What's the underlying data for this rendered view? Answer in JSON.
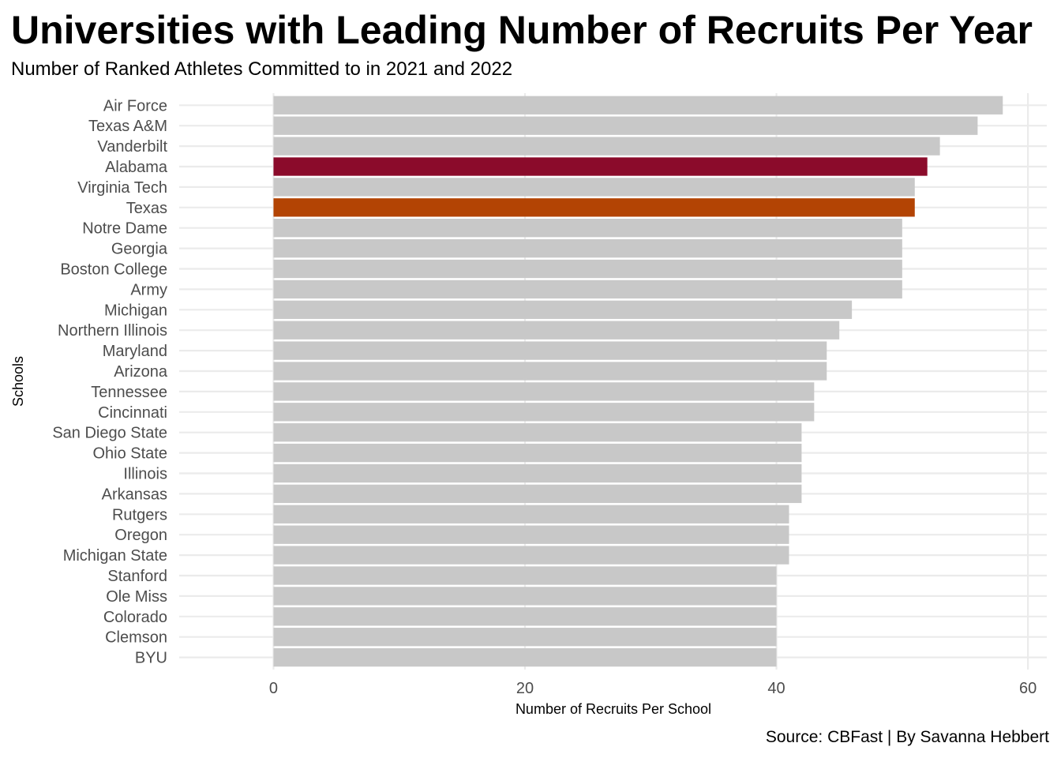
{
  "chart_data": {
    "type": "bar",
    "orientation": "horizontal",
    "title": "Universities with Leading Number of Recruits Per Year",
    "subtitle": "Number of Ranked Athletes Committed to in 2021 and 2022",
    "caption": "Source: CBFast | By Savanna Hebbert",
    "xlabel": "Number of Recruits Per School",
    "ylabel": "Schools",
    "xlim": [
      -7.5,
      61.5
    ],
    "xticks": [
      0,
      20,
      40,
      60
    ],
    "grid": true,
    "legend": "none",
    "categories": [
      "Air Force",
      "Texas A&M",
      "Vanderbilt",
      "Alabama",
      "Virginia Tech",
      "Texas",
      "Notre Dame",
      "Georgia",
      "Boston College",
      "Army",
      "Michigan",
      "Northern Illinois",
      "Maryland",
      "Arizona",
      "Tennessee",
      "Cincinnati",
      "San Diego State",
      "Ohio State",
      "Illinois",
      "Arkansas",
      "Rutgers",
      "Oregon",
      "Michigan State",
      "Stanford",
      "Ole Miss",
      "Colorado",
      "Clemson",
      "BYU"
    ],
    "values": [
      58,
      56,
      53,
      52,
      51,
      51,
      50,
      50,
      50,
      50,
      46,
      45,
      44,
      44,
      43,
      43,
      42,
      42,
      42,
      42,
      41,
      41,
      41,
      40,
      40,
      40,
      40,
      40
    ],
    "colors": {
      "default": "#c8c8c8",
      "Alabama": "#8b0b2b",
      "Texas": "#b34404",
      "grid": "#ebebeb"
    }
  }
}
